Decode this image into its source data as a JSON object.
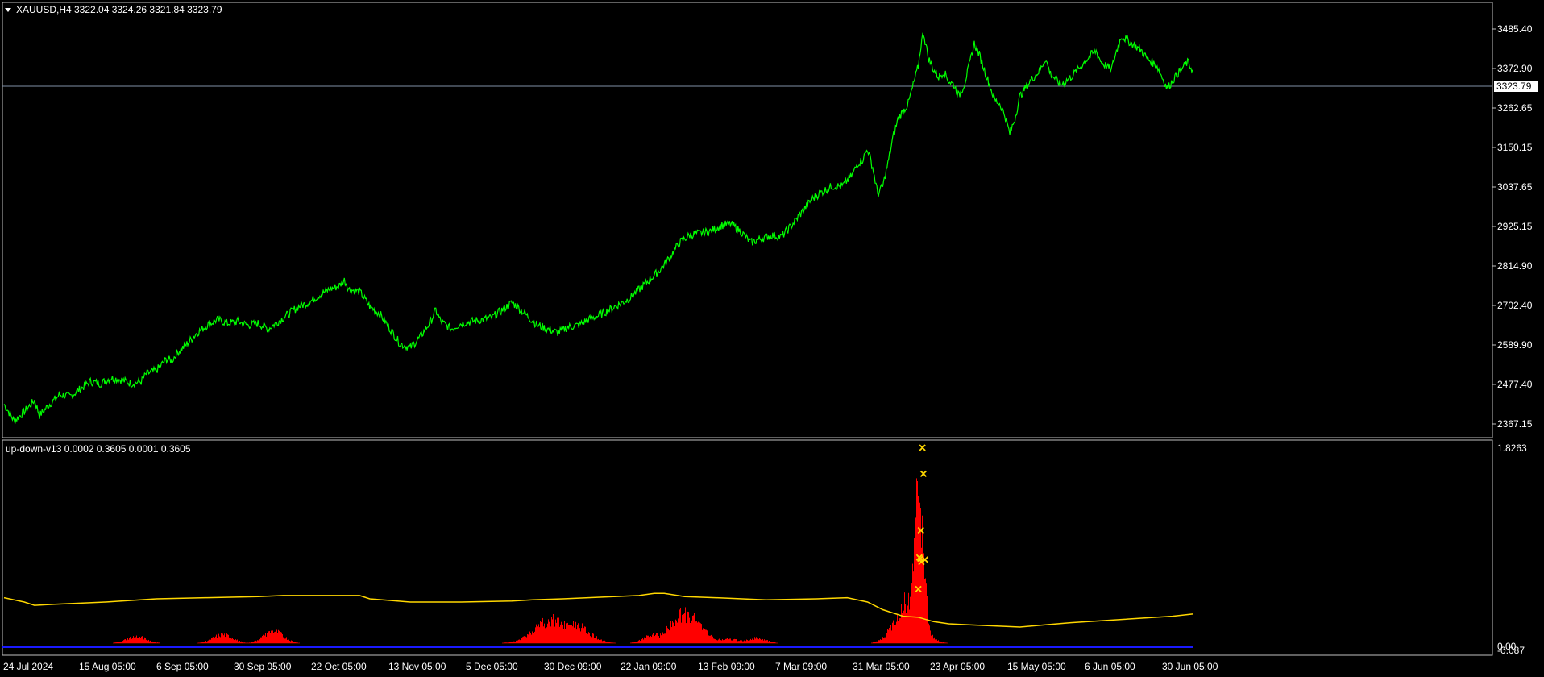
{
  "main_chart": {
    "symbol_timeframe": "XAUUSD,H4",
    "ohlc": "3322.04 3324.26 3321.84 3323.79",
    "price_axis_labels": [
      "3485.40",
      "3372.90",
      "3262.65",
      "3150.15",
      "3037.65",
      "2925.15",
      "2814.90",
      "2702.40",
      "2589.90",
      "2477.40",
      "2367.15"
    ],
    "current_price_label": "3323.79"
  },
  "indicator": {
    "title": "up-down-v13 0.0002 0.3605 0.0001 0.3605",
    "axis_top_label": "1.8263",
    "axis_bottom_labels": [
      "0.00",
      "-0.087"
    ]
  },
  "time_axis_labels": [
    "24 Jul 2024",
    "15 Aug 05:00",
    "6 Sep 05:00",
    "30 Sep 05:00",
    "22 Oct 05:00",
    "13 Nov 05:00",
    "5 Dec 05:00",
    "30 Dec 09:00",
    "22 Jan 09:00",
    "13 Feb 09:00",
    "7 Mar 09:00",
    "31 Mar 05:00",
    "23 Apr 05:00",
    "15 May 05:00",
    "6 Jun 05:00",
    "30 Jun 05:00"
  ],
  "colors": {
    "background": "#000000",
    "price_line": "#00ff00",
    "panel_border": "#c0c0c0",
    "current_price_line": "#7f8fa6",
    "indicator_line": "#ffd700",
    "histogram": "#ff0000",
    "baseline": "#1a1aff",
    "markers": "#ffd700"
  },
  "chart_data": [
    {
      "type": "line",
      "series": [
        {
          "values": [
            [
              0,
              2440
            ],
            [
              2,
              2395
            ],
            [
              4,
              2420
            ],
            [
              6,
              2450
            ],
            [
              7,
              2410
            ],
            [
              9,
              2440
            ],
            [
              11,
              2465
            ],
            [
              13,
              2460
            ],
            [
              15,
              2480
            ],
            [
              17,
              2500
            ],
            [
              19,
              2495
            ],
            [
              21,
              2510
            ],
            [
              23,
              2505
            ],
            [
              25,
              2495
            ],
            [
              27,
              2500
            ],
            [
              28,
              2520
            ],
            [
              30,
              2530
            ],
            [
              32,
              2560
            ],
            [
              33,
              2555
            ],
            [
              34,
              2575
            ],
            [
              36,
              2600
            ],
            [
              38,
              2630
            ],
            [
              40,
              2650
            ],
            [
              42,
              2665
            ],
            [
              44,
              2655
            ],
            [
              46,
              2660
            ],
            [
              48,
              2650
            ],
            [
              50,
              2655
            ],
            [
              52,
              2640
            ],
            [
              54,
              2660
            ],
            [
              56,
              2680
            ],
            [
              58,
              2700
            ],
            [
              60,
              2710
            ],
            [
              62,
              2730
            ],
            [
              64,
              2745
            ],
            [
              66,
              2755
            ],
            [
              67,
              2770
            ],
            [
              68,
              2745
            ],
            [
              70,
              2740
            ],
            [
              72,
              2700
            ],
            [
              74,
              2680
            ],
            [
              76,
              2640
            ],
            [
              78,
              2600
            ],
            [
              80,
              2590
            ],
            [
              82,
              2620
            ],
            [
              83,
              2640
            ],
            [
              84,
              2660
            ],
            [
              85,
              2690
            ],
            [
              86,
              2660
            ],
            [
              88,
              2640
            ],
            [
              90,
              2655
            ],
            [
              92,
              2660
            ],
            [
              94,
              2665
            ],
            [
              96,
              2670
            ],
            [
              98,
              2690
            ],
            [
              100,
              2710
            ],
            [
              101,
              2700
            ],
            [
              103,
              2675
            ],
            [
              105,
              2650
            ],
            [
              107,
              2640
            ],
            [
              109,
              2630
            ],
            [
              111,
              2645
            ],
            [
              113,
              2650
            ],
            [
              115,
              2665
            ],
            [
              117,
              2675
            ],
            [
              119,
              2690
            ],
            [
              121,
              2705
            ],
            [
              123,
              2720
            ],
            [
              125,
              2745
            ],
            [
              127,
              2770
            ],
            [
              129,
              2795
            ],
            [
              131,
              2830
            ],
            [
              133,
              2870
            ],
            [
              135,
              2890
            ],
            [
              137,
              2895
            ],
            [
              139,
              2900
            ],
            [
              141,
              2915
            ],
            [
              143,
              2920
            ],
            [
              145,
              2900
            ],
            [
              147,
              2870
            ],
            [
              149,
              2880
            ],
            [
              151,
              2890
            ],
            [
              153,
              2885
            ],
            [
              155,
              2915
            ],
            [
              157,
              2950
            ],
            [
              159,
              2985
            ],
            [
              161,
              3005
            ],
            [
              163,
              3020
            ],
            [
              165,
              3020
            ],
            [
              167,
              3050
            ],
            [
              168,
              3080
            ],
            [
              169,
              3090
            ],
            [
              170,
              3120
            ],
            [
              171,
              3070
            ],
            [
              172,
              3000
            ],
            [
              173,
              3020
            ],
            [
              174,
              3080
            ],
            [
              175,
              3150
            ],
            [
              176,
              3200
            ],
            [
              177,
              3220
            ],
            [
              178,
              3240
            ],
            [
              179,
              3290
            ],
            [
              180,
              3340
            ],
            [
              180.5,
              3395
            ],
            [
              181,
              3430
            ],
            [
              181.5,
              3395
            ],
            [
              182,
              3360
            ],
            [
              183,
              3330
            ],
            [
              184,
              3310
            ],
            [
              185,
              3325
            ],
            [
              186,
              3300
            ],
            [
              187,
              3290
            ],
            [
              188,
              3260
            ],
            [
              189,
              3290
            ],
            [
              190,
              3340
            ],
            [
              191,
              3400
            ],
            [
              192,
              3370
            ],
            [
              193,
              3330
            ],
            [
              194,
              3290
            ],
            [
              195,
              3250
            ],
            [
              196,
              3240
            ],
            [
              197,
              3210
            ],
            [
              198,
              3160
            ],
            [
              199,
              3200
            ],
            [
              200,
              3260
            ],
            [
              202,
              3300
            ],
            [
              204,
              3330
            ],
            [
              205,
              3360
            ],
            [
              206,
              3320
            ],
            [
              208,
              3290
            ],
            [
              210,
              3310
            ],
            [
              212,
              3340
            ],
            [
              214,
              3370
            ],
            [
              215,
              3380
            ],
            [
              216,
              3350
            ],
            [
              218,
              3330
            ],
            [
              219,
              3380
            ],
            [
              220,
              3420
            ],
            [
              222,
              3400
            ],
            [
              224,
              3380
            ],
            [
              225,
              3360
            ],
            [
              227,
              3340
            ],
            [
              228,
              3310
            ],
            [
              229,
              3280
            ],
            [
              231,
              3320
            ],
            [
              233,
              3350
            ],
            [
              234,
              3330
            ]
          ]
        }
      ],
      "ylim": [
        2355,
        3505
      ],
      "xlim": [
        0,
        234
      ]
    },
    {
      "type": "line",
      "series": [
        {
          "values": [
            [
              0,
              0.42
            ],
            [
              4,
              0.38
            ],
            [
              6,
              0.35
            ],
            [
              10,
              0.36
            ],
            [
              20,
              0.38
            ],
            [
              30,
              0.41
            ],
            [
              40,
              0.42
            ],
            [
              50,
              0.43
            ],
            [
              55,
              0.44
            ],
            [
              60,
              0.44
            ],
            [
              70,
              0.44
            ],
            [
              72,
              0.41
            ],
            [
              80,
              0.38
            ],
            [
              90,
              0.38
            ],
            [
              100,
              0.39
            ],
            [
              104,
              0.4
            ],
            [
              110,
              0.41
            ],
            [
              120,
              0.43
            ],
            [
              125,
              0.44
            ],
            [
              128,
              0.46
            ],
            [
              130,
              0.46
            ],
            [
              134,
              0.43
            ],
            [
              140,
              0.42
            ],
            [
              150,
              0.4
            ],
            [
              160,
              0.41
            ],
            [
              166,
              0.42
            ],
            [
              170,
              0.38
            ],
            [
              173,
              0.31
            ],
            [
              177,
              0.25
            ],
            [
              180,
              0.24
            ],
            [
              183,
              0.2
            ],
            [
              186,
              0.18
            ],
            [
              190,
              0.17
            ],
            [
              200,
              0.15
            ],
            [
              205,
              0.17
            ],
            [
              210,
              0.19
            ],
            [
              220,
              0.22
            ],
            [
              230,
              0.25
            ],
            [
              234,
              0.27
            ]
          ]
        }
      ],
      "ylim": [
        -0.087,
        1.8263
      ],
      "xlim": [
        0,
        234
      ]
    }
  ]
}
